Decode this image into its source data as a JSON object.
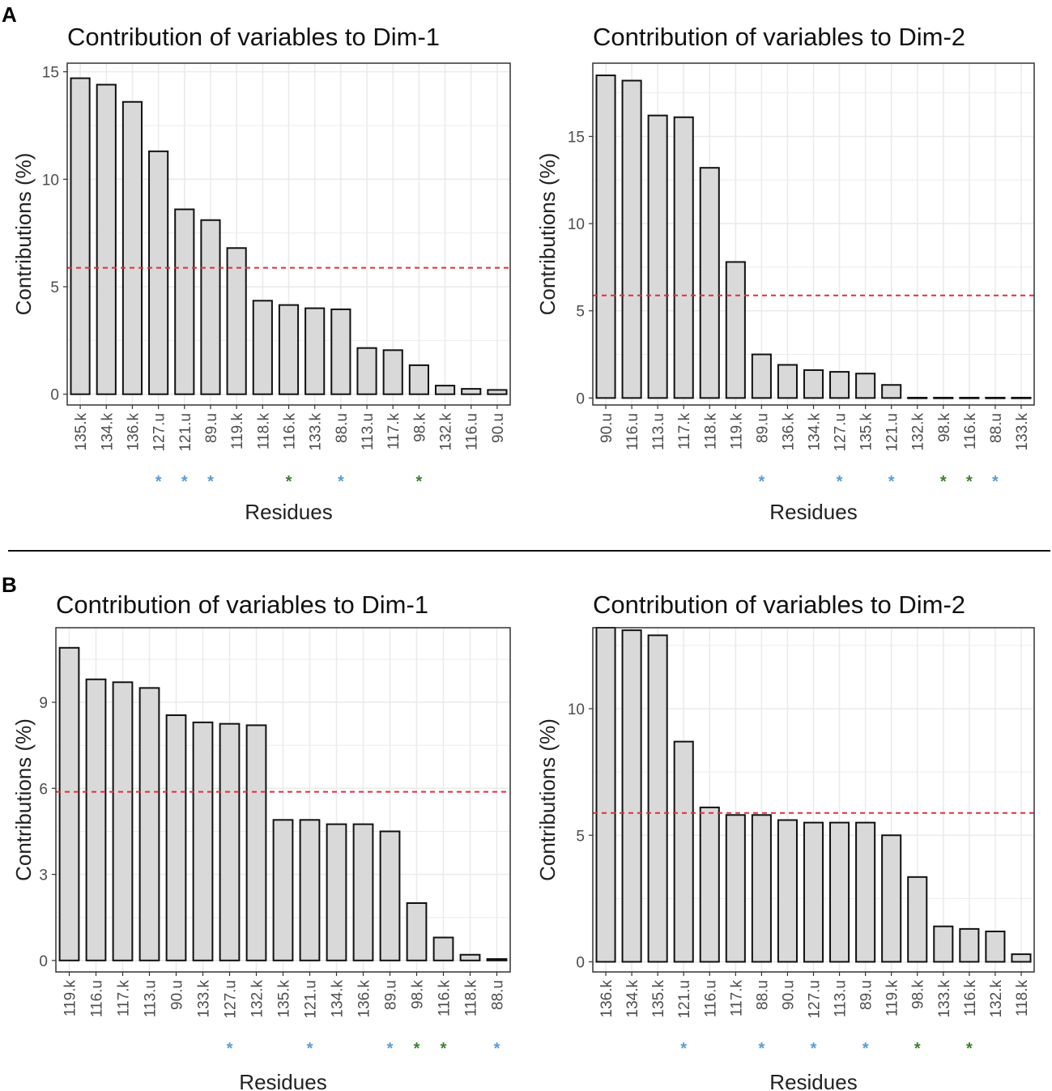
{
  "panels": [
    {
      "id": "A",
      "label": "A"
    },
    {
      "id": "B",
      "label": "B"
    }
  ],
  "colors": {
    "bar_fill": "#d9d9d9",
    "bar_stroke": "#111111",
    "threshold": "#e0303a",
    "grid": "#ebebeb",
    "star_blue": "#5b9bd5",
    "star_green": "#3f7f2f"
  },
  "chart_data": [
    {
      "panel": "A",
      "type": "bar",
      "title": "Contribution of variables to Dim-1",
      "xlabel": "Residues",
      "ylabel": "Contributions (%)",
      "ylim": [
        -0.5,
        15.4
      ],
      "yticks": [
        0,
        5,
        10,
        15
      ],
      "threshold": 5.88,
      "categories": [
        "135.k",
        "134.k",
        "136.k",
        "127.u",
        "121.u",
        "89.u",
        "119.k",
        "118.k",
        "116.k",
        "133.k",
        "88.u",
        "113.u",
        "117.k",
        "98.k",
        "132.k",
        "116.u",
        "90.u"
      ],
      "values": [
        14.7,
        14.4,
        13.6,
        11.3,
        8.6,
        8.1,
        6.8,
        4.35,
        4.15,
        4.0,
        3.95,
        2.15,
        2.05,
        1.35,
        0.4,
        0.25,
        0.2
      ],
      "markers": [
        "",
        "",
        "",
        "blue",
        "blue",
        "blue",
        "",
        "",
        "green",
        "",
        "blue",
        "",
        "",
        "green",
        "",
        "",
        ""
      ]
    },
    {
      "panel": "A",
      "type": "bar",
      "title": "Contribution of variables to Dim-2",
      "xlabel": "Residues",
      "ylabel": "Contributions (%)",
      "ylim": [
        -0.4,
        19.2
      ],
      "yticks": [
        0,
        5,
        10,
        15
      ],
      "threshold": 5.88,
      "categories": [
        "90.u",
        "116.u",
        "113.u",
        "117.k",
        "118.k",
        "119.k",
        "89.u",
        "136.k",
        "134.k",
        "127.u",
        "135.k",
        "121.u",
        "132.k",
        "98.k",
        "116.k",
        "88.u",
        "133.k"
      ],
      "values": [
        18.5,
        18.2,
        16.2,
        16.1,
        13.2,
        7.8,
        2.5,
        1.9,
        1.6,
        1.5,
        1.4,
        0.75,
        0.02,
        0.02,
        0.02,
        0.02,
        0.02
      ],
      "markers": [
        "",
        "",
        "",
        "",
        "",
        "",
        "blue",
        "",
        "",
        "blue",
        "",
        "blue",
        "",
        "green",
        "green",
        "blue",
        ""
      ]
    },
    {
      "panel": "B",
      "type": "bar",
      "title": "Contribution of variables to Dim-1",
      "xlabel": "Residues",
      "ylabel": "Contributions (%)",
      "ylim": [
        -0.4,
        11.6
      ],
      "yticks": [
        0,
        3,
        6,
        9
      ],
      "threshold": 5.88,
      "categories": [
        "119.k",
        "116.u",
        "117.k",
        "113.u",
        "90.u",
        "133.k",
        "127.u",
        "132.k",
        "135.k",
        "121.u",
        "134.k",
        "136.k",
        "89.u",
        "98.k",
        "116.k",
        "118.k",
        "88.u"
      ],
      "values": [
        10.9,
        9.8,
        9.7,
        9.5,
        8.55,
        8.3,
        8.25,
        8.2,
        4.9,
        4.9,
        4.75,
        4.75,
        4.5,
        2.0,
        0.8,
        0.2,
        0.05
      ],
      "markers": [
        "",
        "",
        "",
        "",
        "",
        "",
        "blue",
        "",
        "",
        "blue",
        "",
        "",
        "blue",
        "green",
        "green",
        "",
        "blue"
      ]
    },
    {
      "panel": "B",
      "type": "bar",
      "title": "Contribution of variables to Dim-2",
      "xlabel": "Residues",
      "ylabel": "Contributions (%)",
      "ylim": [
        -0.4,
        13.2
      ],
      "yticks": [
        0,
        5,
        10
      ],
      "threshold": 5.88,
      "categories": [
        "136.k",
        "134.k",
        "135.k",
        "121.u",
        "116.u",
        "117.k",
        "88.u",
        "90.u",
        "127.u",
        "113.u",
        "89.u",
        "119.k",
        "98.k",
        "133.k",
        "116.k",
        "132.k",
        "118.k"
      ],
      "values": [
        13.2,
        13.1,
        12.9,
        8.7,
        6.1,
        5.8,
        5.8,
        5.6,
        5.5,
        5.5,
        5.5,
        5.0,
        3.35,
        1.4,
        1.3,
        1.2,
        0.3
      ],
      "markers": [
        "",
        "",
        "",
        "blue",
        "",
        "",
        "blue",
        "",
        "blue",
        "",
        "blue",
        "",
        "green",
        "",
        "green",
        "",
        ""
      ]
    }
  ]
}
